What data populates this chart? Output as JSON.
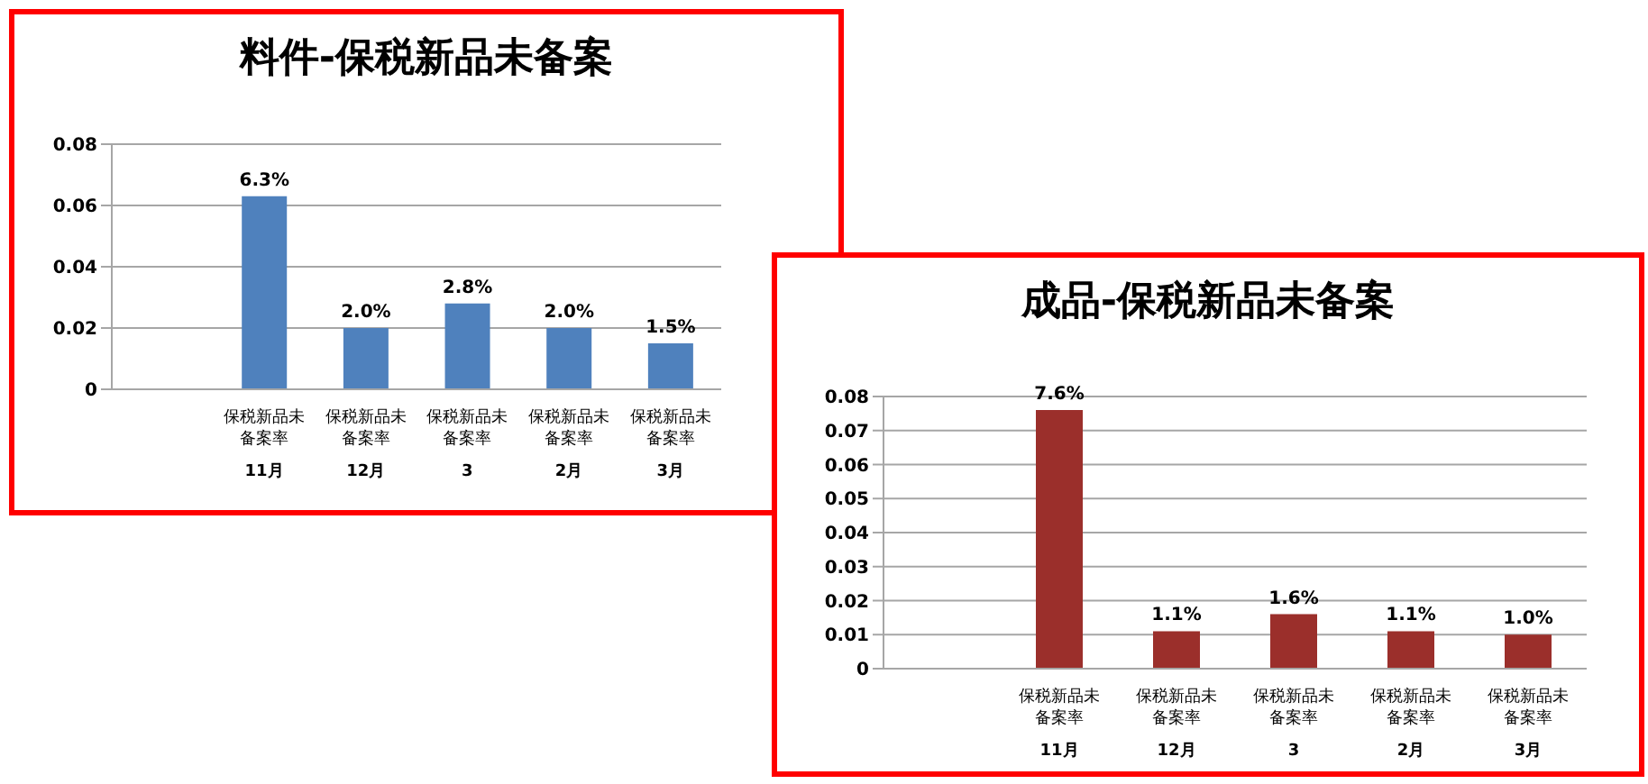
{
  "chart_data": [
    {
      "type": "bar",
      "title": "料件-保税新品未备案",
      "categories": [
        null,
        "保税新品未备案率\n11月",
        "保税新品未备案率\n12月",
        "保税新品未备案率\n3",
        "保税新品未备案率\n2月",
        "保税新品未备案率\n3月"
      ],
      "values": [
        null,
        0.063,
        0.02,
        0.028,
        0.02,
        0.015
      ],
      "value_labels": [
        null,
        "6.3%",
        "2.0%",
        "2.8%",
        "2.0%",
        "1.5%"
      ],
      "color": "#4f81bd",
      "ylim": [
        0,
        0.08
      ],
      "yticks": [
        0,
        0.02,
        0.04,
        0.06,
        0.08
      ],
      "grid": "y"
    },
    {
      "type": "bar",
      "title": "成品-保税新品未备案",
      "categories": [
        null,
        "保税新品未备案率\n11月",
        "保税新品未备案率\n12月",
        "保税新品未备案率\n3",
        "保税新品未备案率\n2月",
        "保税新品未备案率\n3月"
      ],
      "values": [
        null,
        0.076,
        0.011,
        0.016,
        0.011,
        0.01
      ],
      "value_labels": [
        null,
        "7.6%",
        "1.1%",
        "1.6%",
        "1.1%",
        "1.0%"
      ],
      "color": "#9b2f2b",
      "ylim": [
        0,
        0.08
      ],
      "yticks": [
        0,
        0.01,
        0.02,
        0.03,
        0.04,
        0.05,
        0.06,
        0.07,
        0.08
      ],
      "grid": "y"
    }
  ]
}
